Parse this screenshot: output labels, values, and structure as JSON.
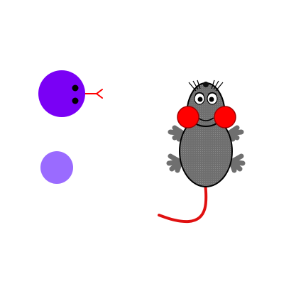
{
  "scene": {
    "background_color": "#ffffff",
    "snake": {
      "head_color": "#7a00f5",
      "body_segment_color": "#9a6bff",
      "eye_color": "#000000",
      "tongue_color": "#ff0000",
      "segment_count": 1
    },
    "mouse": {
      "body_color": "#6f6f6f",
      "outline_color": "#000000",
      "cheek_color": "#ff0000",
      "tail_color": "#e01010",
      "nose_color": "#111111"
    }
  }
}
